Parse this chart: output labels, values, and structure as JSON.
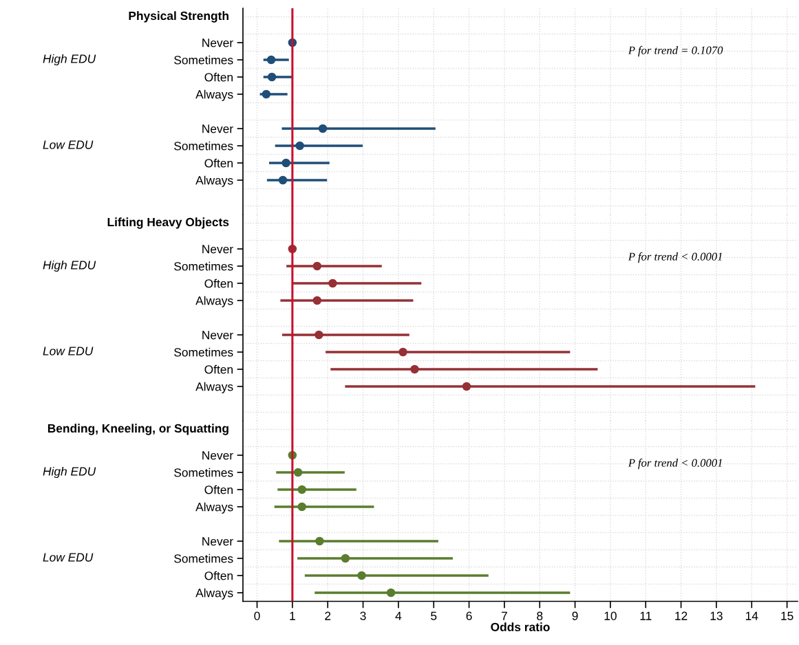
{
  "chart_data": [
    {
      "type": "scatter",
      "orientation": "horizontal",
      "title": "Physical Strength",
      "categories": [
        "Never",
        "Sometimes",
        "Often",
        "Always",
        null,
        "Never",
        "Sometimes",
        "Often",
        "Always"
      ],
      "annotations": [
        "High EDU",
        "Low EDU",
        "P for trend = 0.1070"
      ],
      "series": [
        {
          "color": "#1f4e79",
          "values": [
            1,
            0.4,
            0.42,
            0.26,
            null,
            1.86,
            1.21,
            0.82,
            0.73
          ],
          "errors": [
            null,
            [
              0.18,
              0.9
            ],
            [
              0.18,
              1.0
            ],
            [
              0.08,
              0.86
            ],
            null,
            [
              0.7,
              5.05
            ],
            [
              0.51,
              2.99
            ],
            [
              0.34,
              2.05
            ],
            [
              0.28,
              1.98
            ]
          ]
        }
      ],
      "xlim": [
        -0.4,
        15.3
      ],
      "xticks": [
        0,
        1,
        2,
        3,
        4,
        5,
        6,
        7,
        8,
        9,
        10,
        11,
        12,
        13,
        14,
        15
      ],
      "tick_labels": "y",
      "ref_lines": [
        {
          "axis": "x",
          "value": 1,
          "color": "#c8102e"
        }
      ],
      "grid": true,
      "legend": false,
      "marker": "circle"
    },
    {
      "type": "scatter",
      "orientation": "horizontal",
      "title": "Lifting Heavy Objects",
      "categories": [
        "Never",
        "Sometimes",
        "Often",
        "Always",
        null,
        "Never",
        "Sometimes",
        "Often",
        "Always"
      ],
      "annotations": [
        "High EDU",
        "Low EDU",
        "P for trend < 0.0001"
      ],
      "series": [
        {
          "color": "#963035",
          "values": [
            1,
            1.7,
            2.14,
            1.7,
            null,
            1.75,
            4.13,
            4.46,
            5.93
          ],
          "errors": [
            null,
            [
              0.83,
              3.53
            ],
            [
              1.02,
              4.65
            ],
            [
              0.66,
              4.42
            ],
            null,
            [
              0.71,
              4.31
            ],
            [
              1.94,
              8.86
            ],
            [
              2.08,
              9.64
            ],
            [
              2.49,
              14.1
            ]
          ]
        }
      ],
      "xlim": [
        -0.4,
        15.3
      ],
      "xticks": [
        0,
        1,
        2,
        3,
        4,
        5,
        6,
        7,
        8,
        9,
        10,
        11,
        12,
        13,
        14,
        15
      ],
      "tick_labels": "y",
      "ref_lines": [
        {
          "axis": "x",
          "value": 1,
          "color": "#c8102e"
        }
      ],
      "grid": true,
      "legend": false,
      "marker": "circle"
    },
    {
      "type": "scatter",
      "orientation": "horizontal",
      "title": "Bending, Kneeling, or Squatting",
      "xlabel": "Odds ratio",
      "categories": [
        "Never",
        "Sometimes",
        "Often",
        "Always",
        null,
        "Never",
        "Sometimes",
        "Often",
        "Always"
      ],
      "annotations": [
        "High EDU",
        "Low EDU",
        "P for trend < 0.0001"
      ],
      "series": [
        {
          "color": "#5a7d2e",
          "values": [
            1,
            1.16,
            1.27,
            1.27,
            null,
            1.77,
            2.5,
            2.96,
            3.79
          ],
          "errors": [
            null,
            [
              0.54,
              2.48
            ],
            [
              0.58,
              2.81
            ],
            [
              0.49,
              3.31
            ],
            null,
            [
              0.62,
              5.13
            ],
            [
              1.14,
              5.54
            ],
            [
              1.35,
              6.55
            ],
            [
              1.63,
              8.86
            ]
          ]
        }
      ],
      "xlim": [
        -0.4,
        15.3
      ],
      "xticks": [
        0,
        1,
        2,
        3,
        4,
        5,
        6,
        7,
        8,
        9,
        10,
        11,
        12,
        13,
        14,
        15
      ],
      "ref_lines": [
        {
          "axis": "x",
          "value": 1,
          "color": "#c8102e"
        }
      ],
      "grid": true,
      "legend": false,
      "marker": "circle"
    }
  ]
}
